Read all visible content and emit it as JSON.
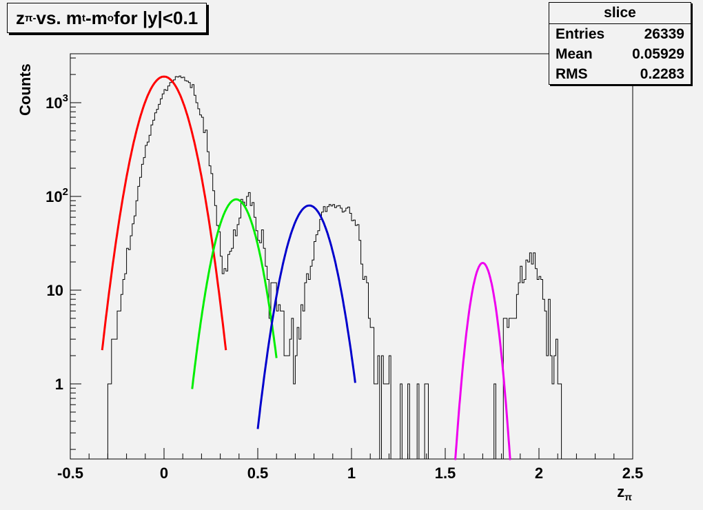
{
  "title": {
    "prefix": "z",
    "prefix_sub": "π-",
    "middle": " vs. m",
    "t_sub": "t",
    "dash": "-m",
    "o_sub": "o",
    "suffix": " for |y|<0.1"
  },
  "stats": {
    "title": "slice",
    "rows": [
      {
        "label": "Entries",
        "value": "26339"
      },
      {
        "label": "Mean",
        "value": "0.05929"
      },
      {
        "label": "RMS",
        "value": "0.2283"
      }
    ]
  },
  "chart_data": {
    "type": "line",
    "title": "zπ- vs. mt-mo for |y|<0.1",
    "xlabel": "zπ",
    "ylabel": "Counts",
    "xlim": [
      -0.5,
      2.5
    ],
    "ylim": [
      0.15,
      3500
    ],
    "yscale": "log",
    "grid": false,
    "x_ticks": [
      {
        "v": -0.5,
        "label": "-0.5"
      },
      {
        "v": 0,
        "label": "0"
      },
      {
        "v": 0.5,
        "label": "0.5"
      },
      {
        "v": 1,
        "label": "1"
      },
      {
        "v": 1.5,
        "label": "1.5"
      },
      {
        "v": 2,
        "label": "2"
      },
      {
        "v": 2.5,
        "label": "2.5"
      }
    ],
    "y_ticks": [
      {
        "v": 1,
        "label": "1"
      },
      {
        "v": 10,
        "label": "10"
      },
      {
        "v": 100,
        "label": "10",
        "sup": "2"
      },
      {
        "v": 1000,
        "label": "10",
        "sup": "3"
      }
    ],
    "histogram": {
      "bin_width": 0.01,
      "x_start": -0.3,
      "values": [
        1,
        1,
        3,
        3,
        3,
        6,
        6,
        9,
        13,
        15,
        28,
        27,
        38,
        51,
        62,
        90,
        128,
        160,
        220,
        260,
        350,
        380,
        450,
        580,
        650,
        780,
        850,
        960,
        1100,
        1240,
        1380,
        1350,
        1510,
        1640,
        1680,
        1750,
        1900,
        1880,
        1930,
        1850,
        1870,
        1720,
        1700,
        1640,
        1450,
        1560,
        1200,
        1000,
        860,
        740,
        700,
        480,
        510,
        300,
        212,
        175,
        115,
        80,
        49,
        42,
        23,
        15,
        17,
        16,
        24,
        26,
        28,
        44,
        38,
        50,
        59,
        93,
        87,
        80,
        100,
        110,
        80,
        86,
        60,
        43,
        34,
        32,
        44,
        28,
        18,
        13,
        5,
        12,
        12,
        12,
        6,
        7,
        6,
        6,
        2,
        2,
        2,
        3,
        5,
        1,
        2,
        4,
        3,
        7,
        6,
        12,
        15,
        13,
        18,
        21,
        33,
        39,
        43,
        57,
        68,
        78,
        69,
        78,
        82,
        79,
        82,
        76,
        79,
        80,
        75,
        68,
        70,
        75,
        77,
        66,
        55,
        56,
        49,
        50,
        34,
        19,
        13,
        14,
        12,
        5,
        4,
        4,
        1,
        1,
        2,
        0,
        2,
        1,
        1,
        1,
        2,
        0,
        0,
        0,
        0,
        0,
        1,
        0,
        0,
        0,
        1,
        0,
        0,
        0,
        0,
        1,
        0,
        0,
        0,
        1,
        1,
        0,
        0,
        0,
        0,
        0,
        0,
        0,
        0,
        0,
        0,
        0,
        0,
        0,
        0,
        0,
        0,
        0,
        0,
        0,
        0,
        0,
        0,
        0,
        0,
        0,
        0,
        0,
        0,
        0,
        0,
        0,
        0,
        0,
        0,
        0,
        1,
        0,
        0,
        0,
        0,
        5,
        5,
        4,
        5,
        5,
        5,
        5,
        9,
        12,
        18,
        12,
        13,
        21,
        20,
        25,
        19,
        25,
        17,
        13,
        14,
        13,
        8,
        6,
        2,
        8,
        2,
        1,
        2,
        3,
        1,
        1,
        0,
        0,
        0
      ]
    },
    "series": [
      {
        "color": "#ff0000",
        "amplitude": 1900,
        "mean": 0.0,
        "sigma": 0.09,
        "range": [
          -0.33,
          0.33
        ]
      },
      {
        "color": "#00ee00",
        "amplitude": 93,
        "mean": 0.385,
        "sigma": 0.077,
        "range": [
          0.15,
          0.6
        ]
      },
      {
        "color": "#0000cc",
        "amplitude": 80,
        "mean": 0.775,
        "sigma": 0.083,
        "range": [
          0.5,
          1.02
        ]
      },
      {
        "color": "#ee00ee",
        "amplitude": 19.5,
        "mean": 1.7,
        "sigma": 0.047,
        "range": [
          1.55,
          1.85
        ]
      }
    ]
  }
}
